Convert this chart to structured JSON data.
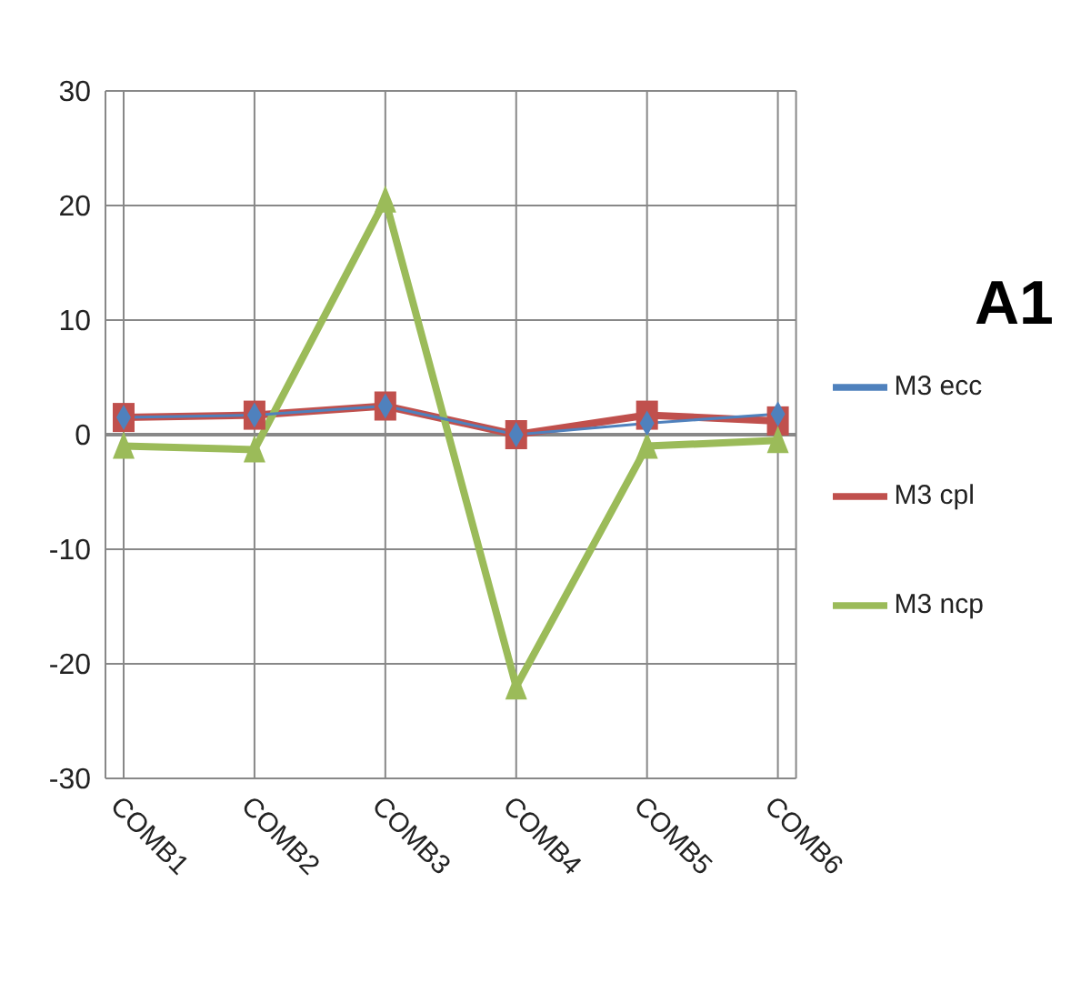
{
  "chart_data": {
    "type": "line",
    "title": "A1",
    "categories": [
      "COMB1",
      "COMB2",
      "COMB3",
      "COMB4",
      "COMB5",
      "COMB6"
    ],
    "series": [
      {
        "name": "M3 ecc",
        "color": "#4f81bd",
        "marker": "diamond",
        "values": [
          1.5,
          1.7,
          2.5,
          0,
          1,
          1.8
        ]
      },
      {
        "name": "M3 cpl",
        "color": "#c0504d",
        "marker": "square",
        "values": [
          1.5,
          1.7,
          2.5,
          0,
          1.7,
          1.2
        ]
      },
      {
        "name": "M3 ncp",
        "color": "#9bbb59",
        "marker": "triangle",
        "values": [
          -1,
          -1.3,
          20.5,
          -22,
          -1,
          -0.5
        ]
      }
    ],
    "ylim": [
      -30,
      30
    ],
    "yticks": [
      -30,
      -20,
      -10,
      0,
      10,
      20,
      30
    ],
    "grid": true,
    "legend": "right"
  }
}
